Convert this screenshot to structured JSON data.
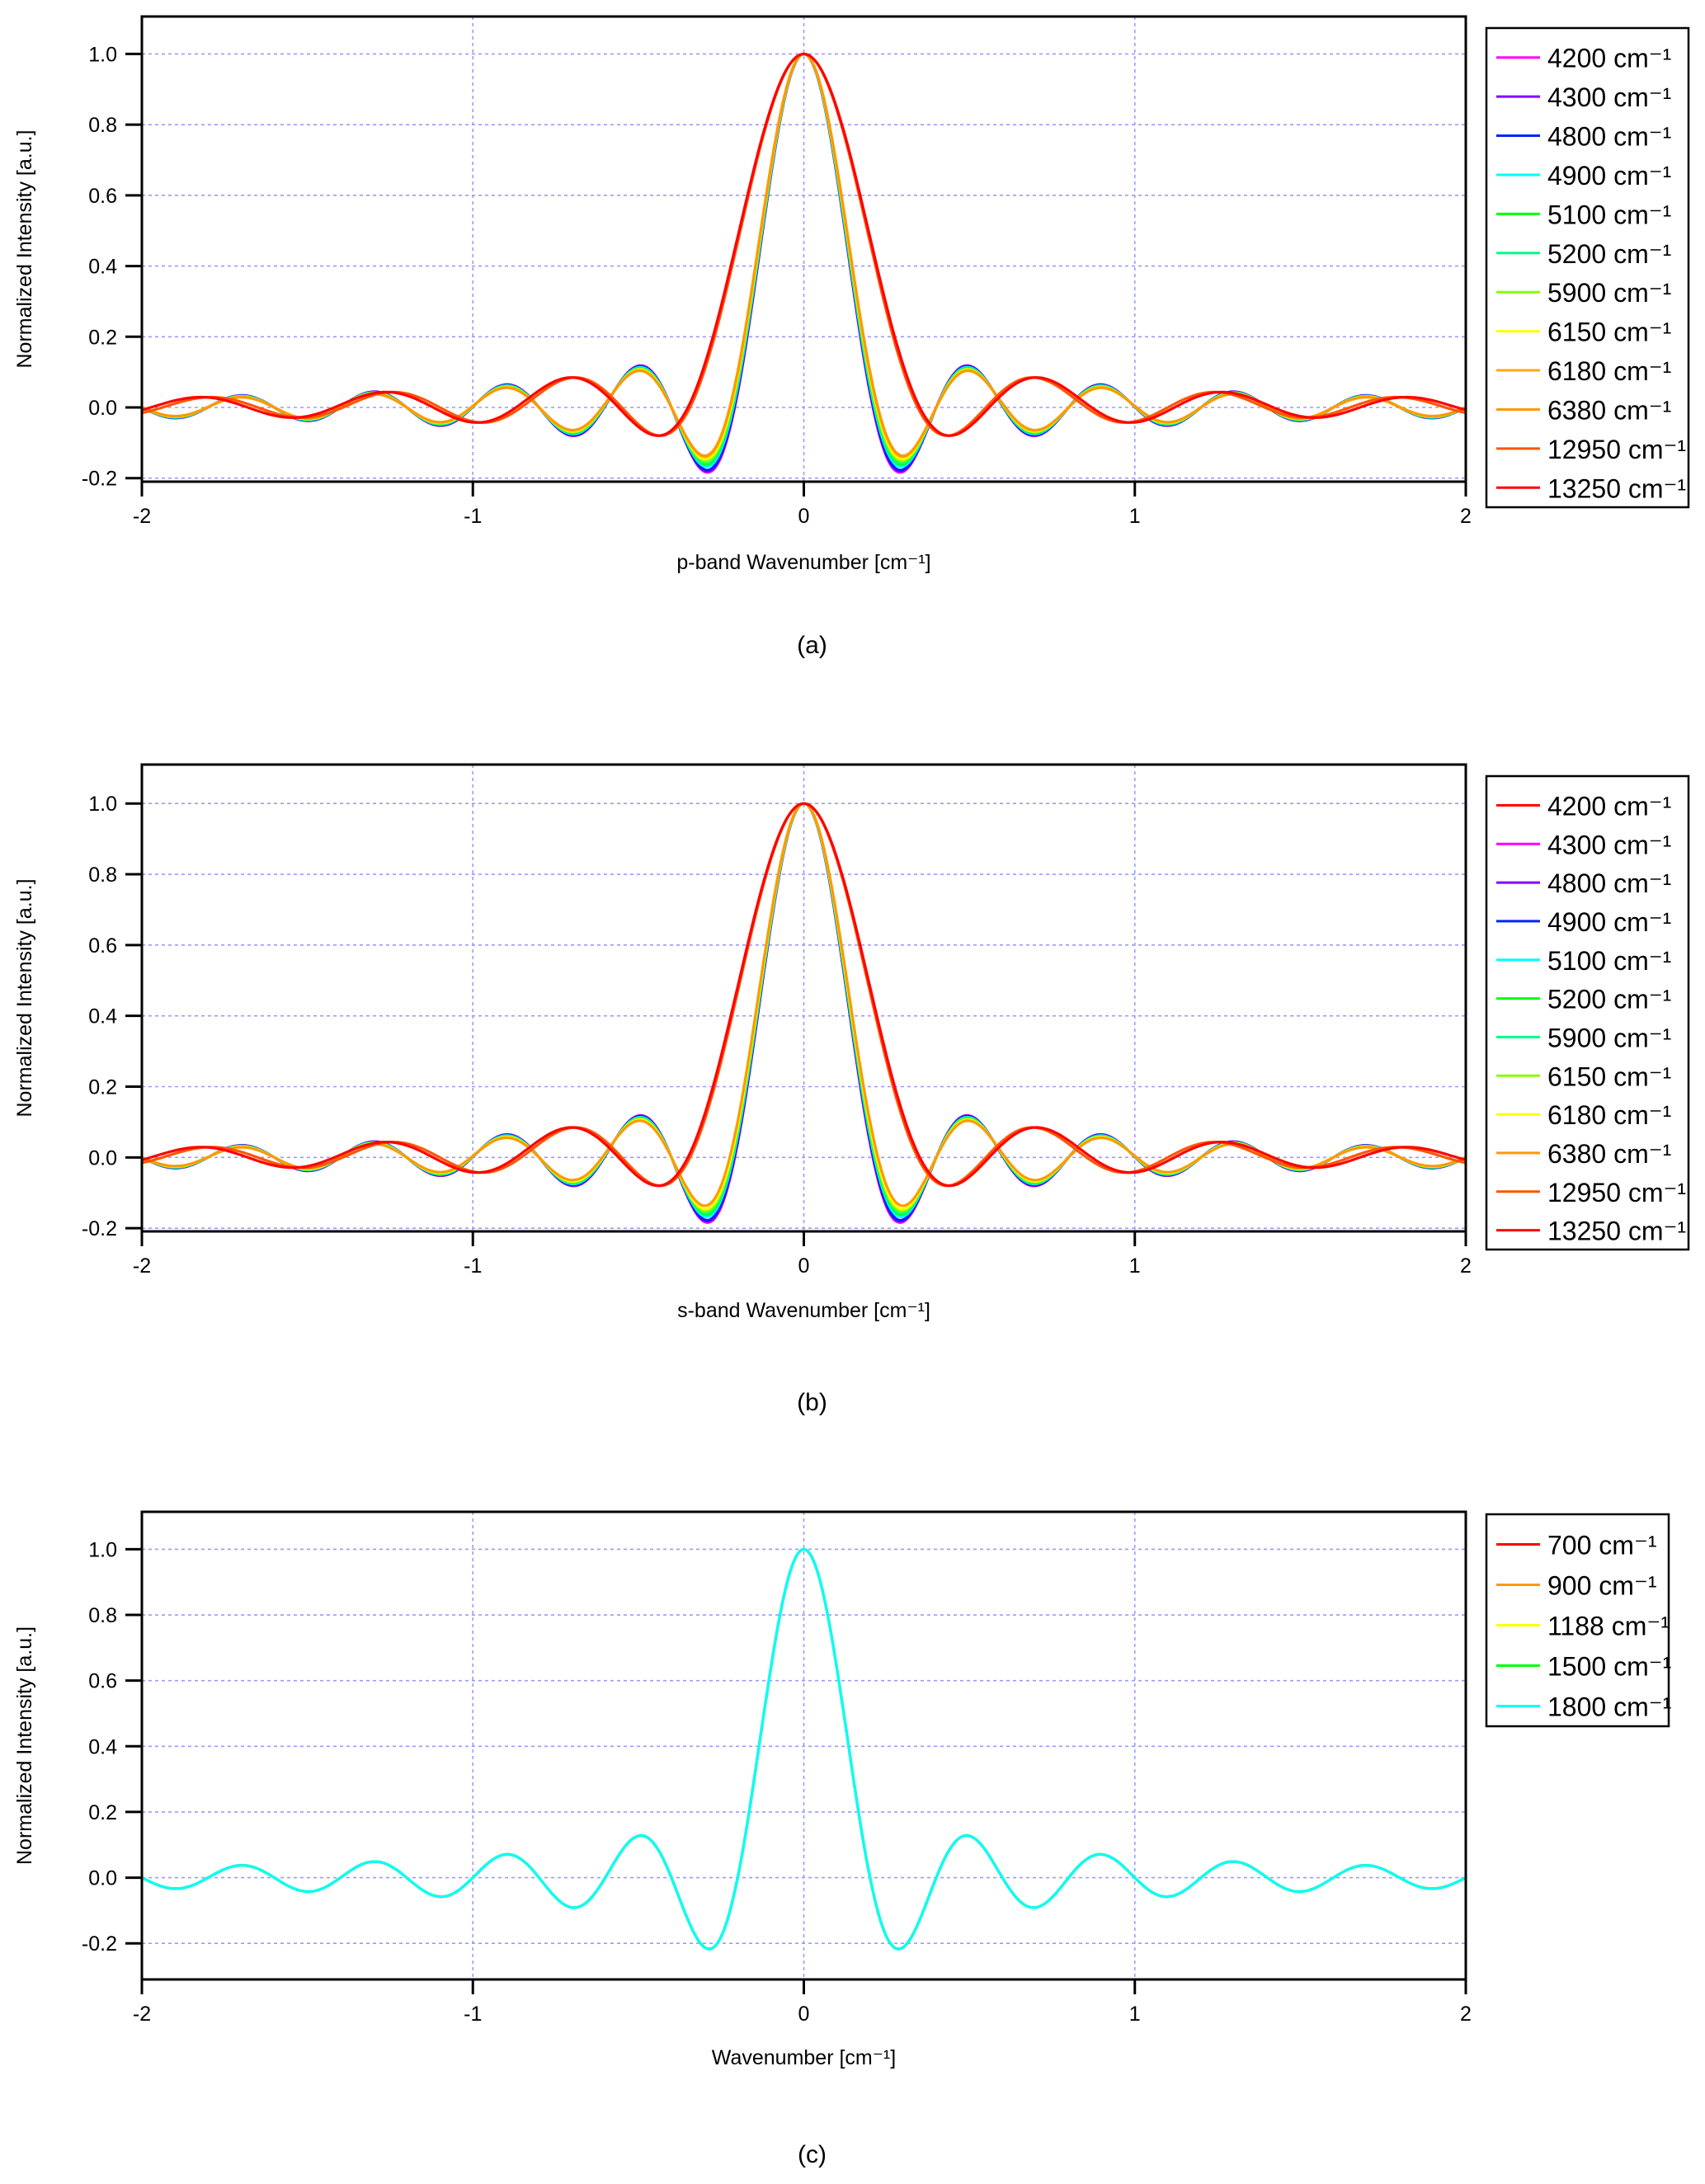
{
  "chart_data": [
    {
      "type": "line",
      "panel": "a",
      "caption": "(a)",
      "xlabel": "p-band Wavenumber [cm⁻¹]",
      "ylabel": "Normalized Intensity [a.u.]",
      "xlim": [
        -2,
        2
      ],
      "ylim": [
        -0.21,
        1.106
      ],
      "xticks": [
        "-2",
        "-1",
        "0",
        "1",
        "2"
      ],
      "yticks": [
        "-0.2",
        "0.0",
        "0.2",
        "0.4",
        "0.6",
        "0.8",
        "1.0"
      ],
      "grid": true,
      "legend_position": "right",
      "model": "y = (1-mix)*sinc(pi*x/zero_spacing) + mix*sinc(pi*x/(2*zero_spacing))^2",
      "series": [
        {
          "name": "4200 cm⁻¹",
          "color": "#ff00ff",
          "zero_spacing": 0.2,
          "mix": 0.1
        },
        {
          "name": "4300 cm⁻¹",
          "color": "#8800ff",
          "zero_spacing": 0.2,
          "mix": 0.11
        },
        {
          "name": "4800 cm⁻¹",
          "color": "#0022ff",
          "zero_spacing": 0.2,
          "mix": 0.12
        },
        {
          "name": "4900 cm⁻¹",
          "color": "#00ffff",
          "zero_spacing": 0.2,
          "mix": 0.15
        },
        {
          "name": "5100 cm⁻¹",
          "color": "#00ff00",
          "zero_spacing": 0.2,
          "mix": 0.17
        },
        {
          "name": "5200 cm⁻¹",
          "color": "#00ff88",
          "zero_spacing": 0.2,
          "mix": 0.18
        },
        {
          "name": "5900 cm⁻¹",
          "color": "#88ff00",
          "zero_spacing": 0.2,
          "mix": 0.2
        },
        {
          "name": "6150 cm⁻¹",
          "color": "#ffff00",
          "zero_spacing": 0.2,
          "mix": 0.22
        },
        {
          "name": "6180 cm⁻¹",
          "color": "#ffaa00",
          "zero_spacing": 0.2,
          "mix": 0.24
        },
        {
          "name": "6380 cm⁻¹",
          "color": "#ff9900",
          "zero_spacing": 0.2,
          "mix": 0.25
        },
        {
          "name": "12950 cm⁻¹",
          "color": "#ff5500",
          "zero_spacing": 0.275,
          "mix": 0.45
        },
        {
          "name": "13250 cm⁻¹",
          "color": "#ff0000",
          "zero_spacing": 0.28,
          "mix": 0.45
        }
      ]
    },
    {
      "type": "line",
      "panel": "b",
      "caption": "(b)",
      "xlabel": "s-band Wavenumber [cm⁻¹]",
      "ylabel": "Normalized Intensity [a.u.]",
      "xlim": [
        -2,
        2
      ],
      "ylim": [
        -0.209,
        1.11
      ],
      "xticks": [
        "-2",
        "-1",
        "0",
        "1",
        "2"
      ],
      "yticks": [
        "-0.2",
        "0.0",
        "0.2",
        "0.4",
        "0.6",
        "0.8",
        "1.0"
      ],
      "grid": true,
      "legend_position": "right",
      "model": "y = (1-mix)*sinc(pi*x/zero_spacing) + mix*sinc(pi*x/(2*zero_spacing))^2",
      "series": [
        {
          "name": "4200 cm⁻¹",
          "color": "#ff0000",
          "zero_spacing": 0.2,
          "mix": 0.1
        },
        {
          "name": "4300 cm⁻¹",
          "color": "#ff00ff",
          "zero_spacing": 0.2,
          "mix": 0.1
        },
        {
          "name": "4800 cm⁻¹",
          "color": "#8800ff",
          "zero_spacing": 0.2,
          "mix": 0.11
        },
        {
          "name": "4900 cm⁻¹",
          "color": "#0022ff",
          "zero_spacing": 0.2,
          "mix": 0.12
        },
        {
          "name": "5100 cm⁻¹",
          "color": "#00ffff",
          "zero_spacing": 0.2,
          "mix": 0.15
        },
        {
          "name": "5200 cm⁻¹",
          "color": "#00ff00",
          "zero_spacing": 0.2,
          "mix": 0.17
        },
        {
          "name": "5900 cm⁻¹",
          "color": "#00ff88",
          "zero_spacing": 0.2,
          "mix": 0.18
        },
        {
          "name": "6150 cm⁻¹",
          "color": "#88ff00",
          "zero_spacing": 0.2,
          "mix": 0.2
        },
        {
          "name": "6180 cm⁻¹",
          "color": "#ffff00",
          "zero_spacing": 0.2,
          "mix": 0.22
        },
        {
          "name": "6380 cm⁻¹",
          "color": "#ff9900",
          "zero_spacing": 0.2,
          "mix": 0.25
        },
        {
          "name": "12950 cm⁻¹",
          "color": "#ff5500",
          "zero_spacing": 0.275,
          "mix": 0.45
        },
        {
          "name": "13250 cm⁻¹",
          "color": "#ff0000",
          "zero_spacing": 0.28,
          "mix": 0.45
        }
      ]
    },
    {
      "type": "line",
      "panel": "c",
      "caption": "(c)",
      "xlabel": "Wavenumber [cm⁻¹]",
      "ylabel": "Normalized Intensity [a.u.]",
      "xlim": [
        -2,
        2
      ],
      "ylim": [
        -0.31,
        1.114
      ],
      "xticks": [
        "-2",
        "-1",
        "0",
        "1",
        "2"
      ],
      "yticks": [
        "-0.2",
        "0.0",
        "0.2",
        "0.4",
        "0.6",
        "0.8",
        "1.0"
      ],
      "grid": true,
      "legend_position": "right",
      "model": "y = (1-mix)*sinc(pi*x/zero_spacing) + mix*sinc(pi*x/(2*zero_spacing))^2",
      "series": [
        {
          "name": "700 cm⁻¹",
          "color": "#ff0000",
          "zero_spacing": 0.2,
          "mix": 0
        },
        {
          "name": "900 cm⁻¹",
          "color": "#ff9900",
          "zero_spacing": 0.2,
          "mix": 0
        },
        {
          "name": "1188 cm⁻¹",
          "color": "#ffff00",
          "zero_spacing": 0.2,
          "mix": 0
        },
        {
          "name": "1500 cm⁻¹",
          "color": "#00ff00",
          "zero_spacing": 0.2,
          "mix": 0
        },
        {
          "name": "1800 cm⁻¹",
          "color": "#00ffff",
          "zero_spacing": 0.2,
          "mix": 0
        }
      ]
    }
  ]
}
